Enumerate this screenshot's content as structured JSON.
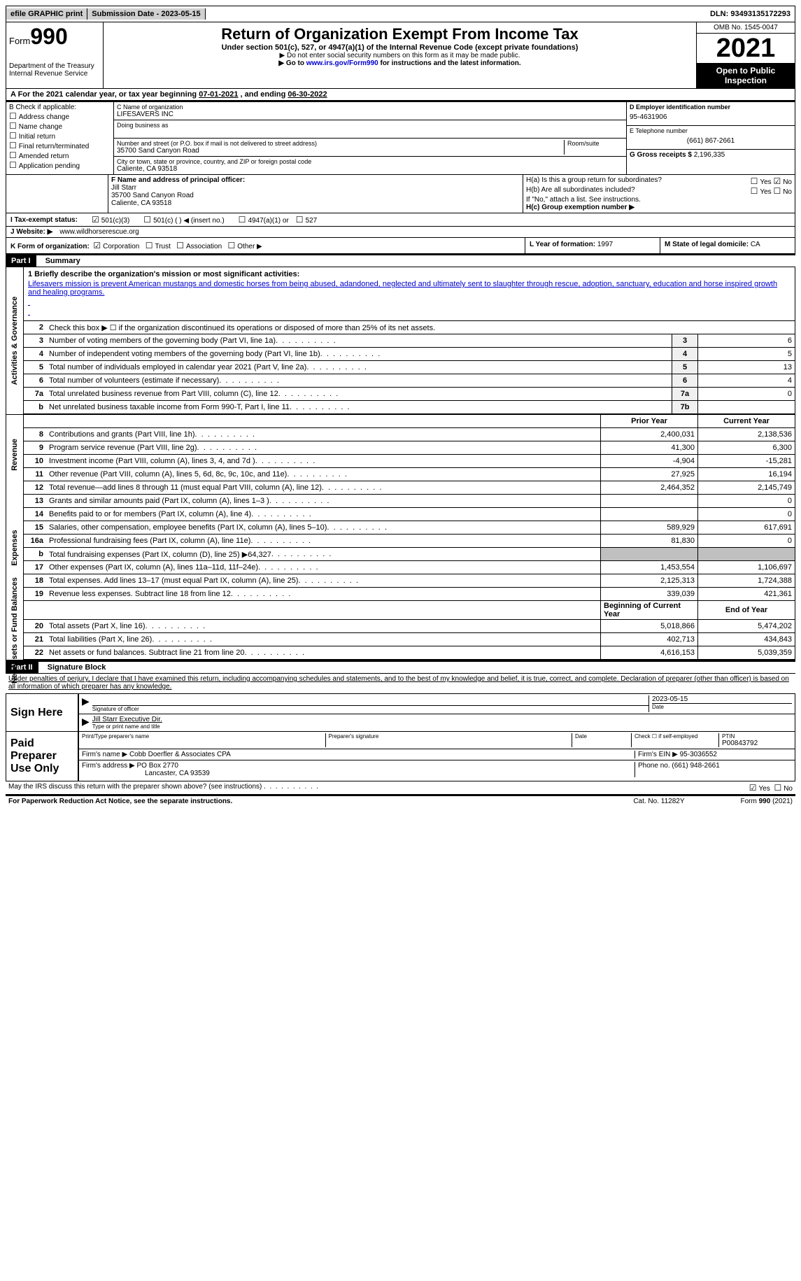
{
  "topbar": {
    "efile": "efile GRAPHIC print",
    "submission_label": "Submission Date - ",
    "submission_date": "2023-05-15",
    "dln_label": "DLN: ",
    "dln": "93493135172293"
  },
  "header": {
    "form_label": "Form",
    "form_num": "990",
    "dept": "Department of the Treasury",
    "irs": "Internal Revenue Service",
    "title": "Return of Organization Exempt From Income Tax",
    "sub": "Under section 501(c), 527, or 4947(a)(1) of the Internal Revenue Code (except private foundations)",
    "note1": "▶ Do not enter social security numbers on this form as it may be made public.",
    "note2_pre": "▶ Go to ",
    "note2_link": "www.irs.gov/Form990",
    "note2_post": " for instructions and the latest information.",
    "omb": "OMB No. 1545-0047",
    "year": "2021",
    "open": "Open to Public Inspection"
  },
  "period": {
    "label_a": "A For the 2021 calendar year, or tax year beginning ",
    "begin": "07-01-2021",
    "mid": " , and ending ",
    "end": "06-30-2022"
  },
  "checkboxes": {
    "b_label": "B Check if applicable:",
    "addr": "Address change",
    "name": "Name change",
    "initial": "Initial return",
    "final": "Final return/terminated",
    "amended": "Amended return",
    "app": "Application pending"
  },
  "entity": {
    "c_label": "C Name of organization",
    "org_name": "LIFESAVERS INC",
    "dba_label": "Doing business as",
    "street_label": "Number and street (or P.O. box if mail is not delivered to street address)",
    "room_label": "Room/suite",
    "street": "35700 Sand Canyon Road",
    "city_label": "City or town, state or province, country, and ZIP or foreign postal code",
    "city": "Caliente, CA  93518",
    "d_label": "D Employer identification number",
    "ein": "95-4631906",
    "e_label": "E Telephone number",
    "phone": "(661) 867-2661",
    "g_label": "G Gross receipts $ ",
    "gross": "2,196,335"
  },
  "officer": {
    "f_label": "F  Name and address of principal officer:",
    "name": "Jill Starr",
    "street": "35700 Sand Canyon Road",
    "city": "Caliente, CA  93518",
    "ha_label": "H(a)  Is this a group return for subordinates?",
    "hb_label": "H(b)  Are all subordinates included?",
    "hb_note": "If \"No,\" attach a list. See instructions.",
    "hc_label": "H(c)  Group exemption number ▶",
    "yes": "Yes",
    "no": "No"
  },
  "status": {
    "i_label": "I  Tax-exempt status:",
    "s501c3": "501(c)(3)",
    "s501c": "501(c) (  ) ◀ (insert no.)",
    "s4947": "4947(a)(1) or",
    "s527": "527",
    "j_label": "J  Website: ▶",
    "website": "www.wildhorserescue.org"
  },
  "k_row": {
    "k_label": "K Form of organization:",
    "corp": "Corporation",
    "trust": "Trust",
    "assoc": "Association",
    "other": "Other ▶",
    "l_label": "L Year of formation: ",
    "l_val": "1997",
    "m_label": "M State of legal domicile: ",
    "m_val": "CA"
  },
  "part1": {
    "hdr": "Part I",
    "title": "Summary",
    "side_act": "Activities & Governance",
    "side_rev": "Revenue",
    "side_exp": "Expenses",
    "side_net": "Net Assets or Fund Balances",
    "q1_label": "1  Briefly describe the organization's mission or most significant activities:",
    "mission": "Lifesavers mission is prevent American mustangs and domestic horses from being abused, adandoned, neglected and ultimately sent to slaughter through rescue, adoption, sanctuary, education and horse inspired growth and healing programs.",
    "q2": "Check this box ▶ ☐  if the organization discontinued its operations or disposed of more than 25% of its net assets.",
    "prior_hdr": "Prior Year",
    "current_hdr": "Current Year",
    "begin_hdr": "Beginning of Current Year",
    "end_hdr": "End of Year",
    "rows_act": [
      {
        "n": "3",
        "d": "Number of voting members of the governing body (Part VI, line 1a)",
        "box": "3",
        "v": "6"
      },
      {
        "n": "4",
        "d": "Number of independent voting members of the governing body (Part VI, line 1b)",
        "box": "4",
        "v": "5"
      },
      {
        "n": "5",
        "d": "Total number of individuals employed in calendar year 2021 (Part V, line 2a)",
        "box": "5",
        "v": "13"
      },
      {
        "n": "6",
        "d": "Total number of volunteers (estimate if necessary)",
        "box": "6",
        "v": "4"
      },
      {
        "n": "7a",
        "d": "Total unrelated business revenue from Part VIII, column (C), line 12",
        "box": "7a",
        "v": "0"
      },
      {
        "n": "b",
        "d": "Net unrelated business taxable income from Form 990-T, Part I, line 11",
        "box": "7b",
        "v": ""
      }
    ],
    "rows_rev": [
      {
        "n": "8",
        "d": "Contributions and grants (Part VIII, line 1h)",
        "p": "2,400,031",
        "c": "2,138,536"
      },
      {
        "n": "9",
        "d": "Program service revenue (Part VIII, line 2g)",
        "p": "41,300",
        "c": "6,300"
      },
      {
        "n": "10",
        "d": "Investment income (Part VIII, column (A), lines 3, 4, and 7d )",
        "p": "-4,904",
        "c": "-15,281"
      },
      {
        "n": "11",
        "d": "Other revenue (Part VIII, column (A), lines 5, 6d, 8c, 9c, 10c, and 11e)",
        "p": "27,925",
        "c": "16,194"
      },
      {
        "n": "12",
        "d": "Total revenue—add lines 8 through 11 (must equal Part VIII, column (A), line 12)",
        "p": "2,464,352",
        "c": "2,145,749"
      }
    ],
    "rows_exp": [
      {
        "n": "13",
        "d": "Grants and similar amounts paid (Part IX, column (A), lines 1–3 )",
        "p": "",
        "c": "0"
      },
      {
        "n": "14",
        "d": "Benefits paid to or for members (Part IX, column (A), line 4)",
        "p": "",
        "c": "0"
      },
      {
        "n": "15",
        "d": "Salaries, other compensation, employee benefits (Part IX, column (A), lines 5–10)",
        "p": "589,929",
        "c": "617,691"
      },
      {
        "n": "16a",
        "d": "Professional fundraising fees (Part IX, column (A), line 11e)",
        "p": "81,830",
        "c": "0"
      },
      {
        "n": "b",
        "d": "Total fundraising expenses (Part IX, column (D), line 25) ▶64,327",
        "p": "shaded",
        "c": "shaded"
      },
      {
        "n": "17",
        "d": "Other expenses (Part IX, column (A), lines 11a–11d, 11f–24e)",
        "p": "1,453,554",
        "c": "1,106,697"
      },
      {
        "n": "18",
        "d": "Total expenses. Add lines 13–17 (must equal Part IX, column (A), line 25)",
        "p": "2,125,313",
        "c": "1,724,388"
      },
      {
        "n": "19",
        "d": "Revenue less expenses. Subtract line 18 from line 12",
        "p": "339,039",
        "c": "421,361"
      }
    ],
    "rows_net": [
      {
        "n": "20",
        "d": "Total assets (Part X, line 16)",
        "p": "5,018,866",
        "c": "5,474,202"
      },
      {
        "n": "21",
        "d": "Total liabilities (Part X, line 26)",
        "p": "402,713",
        "c": "434,843"
      },
      {
        "n": "22",
        "d": "Net assets or fund balances. Subtract line 21 from line 20",
        "p": "4,616,153",
        "c": "5,039,359"
      }
    ]
  },
  "part2": {
    "hdr": "Part II",
    "title": "Signature Block",
    "perjury": "Under penalties of perjury, I declare that I have examined this return, including accompanying schedules and statements, and to the best of my knowledge and belief, it is true, correct, and complete. Declaration of preparer (other than officer) is based on all information of which preparer has any knowledge.",
    "sign_here": "Sign Here",
    "sig_officer": "Signature of officer",
    "sig_date": "2023-05-15",
    "date_lbl": "Date",
    "name_title": "Jill Starr  Executive Dir.",
    "name_title_lbl": "Type or print name and title",
    "paid": "Paid Preparer Use Only",
    "prep_name_lbl": "Print/Type preparer's name",
    "prep_sig_lbl": "Preparer's signature",
    "check_self": "Check ☐ if self-employed",
    "ptin_lbl": "PTIN",
    "ptin": "P00843792",
    "firm_name_lbl": "Firm's name   ▶ ",
    "firm_name": "Cobb Doerfler & Associates CPA",
    "firm_ein_lbl": "Firm's EIN ▶ ",
    "firm_ein": "95-3036552",
    "firm_addr_lbl": "Firm's address ▶ ",
    "firm_addr1": "PO Box 2770",
    "firm_addr2": "Lancaster, CA  93539",
    "phone_lbl": "Phone no. ",
    "phone": "(661) 948-2661",
    "discuss": "May the IRS discuss this return with the preparer shown above? (see instructions)",
    "yes": "Yes",
    "no": "No"
  },
  "footer": {
    "pra": "For Paperwork Reduction Act Notice, see the separate instructions.",
    "cat": "Cat. No. 11282Y",
    "form": "Form 990 (2021)"
  }
}
